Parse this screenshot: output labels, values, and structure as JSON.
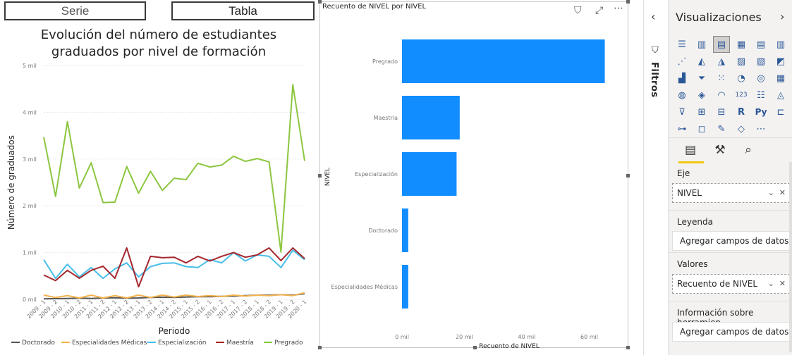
{
  "buttons": {
    "serie": "Serie",
    "tabla": "Tabla"
  },
  "line_chart": {
    "title_line1": "Evolución del número de estudiantes",
    "title_line2": "graduados por nivel de formación"
  },
  "bar_visual": {
    "title": "Recuento de NIVEL por NIVEL"
  },
  "filters_pane": {
    "label": "Filtros"
  },
  "viz_pane": {
    "title": "Visualizaciones",
    "wells": {
      "axis_label": "Eje",
      "axis_value": "NIVEL",
      "legend_label": "Leyenda",
      "legend_placeholder": "Agregar campos de datos a...",
      "values_label": "Valores",
      "values_value": "Recuento de NIVEL",
      "tooltips_label": "Información sobre herramien...",
      "tooltips_placeholder": "Agregar campos de datos a..."
    },
    "viz_icons": [
      "stacked-bar",
      "stacked-column",
      "clustered-bar",
      "clustered-column",
      "100-bar",
      "100-column",
      "line",
      "area",
      "stacked-area",
      "line-column",
      "line-stacked-column",
      "ribbon",
      "waterfall",
      "funnel",
      "scatter",
      "pie",
      "donut",
      "treemap",
      "map",
      "filled-map",
      "gauge",
      "card",
      "multi-row-card",
      "kpi",
      "slicer",
      "table",
      "matrix",
      "r-visual",
      "python-visual",
      "key-influencers",
      "decomposition-tree",
      "qa",
      "smart-narrative",
      "shape-map",
      "more"
    ]
  },
  "chart_data": [
    {
      "type": "line",
      "title": "Evolución del número de estudiantes graduados por nivel de formación",
      "xlabel": "Periodo",
      "ylabel": "Número de graduados",
      "ylim": [
        0,
        5000
      ],
      "yticks": [
        "0 mil",
        "1 mil",
        "2 mil",
        "3 mil",
        "4 mil",
        "5 mil"
      ],
      "xticks": [
        "2009 - 1",
        "2009 - 2",
        "2010 - 1",
        "2010 - 2",
        "2011 - 1",
        "2011 - 2",
        "2012 - 1",
        "2012 - 2",
        "2013 - 1",
        "2013 - 2",
        "2014 - 1",
        "2014 - 2",
        "2015 - 1",
        "2015 - 2",
        "2016 - 1",
        "2016 - 2",
        "2017 - 1",
        "2017 - 2",
        "2018 - 1",
        "2018 - 2",
        "2019 - 1",
        "2019 - 2",
        "2020 - 1"
      ],
      "x": [
        "2009 - 1",
        "2009 - 2",
        "2010 - 1",
        "2010 - 2",
        "2011 - 1",
        "2011 - 2",
        "2012 - 1",
        "2012 - 2",
        "2013 - 1",
        "2013 - 2",
        "2014 - 1",
        "2014 - 2",
        "2015 - 1",
        "2015 - 2",
        "2016 - 1",
        "2016 - 2",
        "2017 - 1",
        "2017 - 2",
        "2018 - 1",
        "2018 - 2",
        "2019 - 1",
        "2019 - 2",
        "2020 - 1"
      ],
      "legend_position": "bottom",
      "grid": true,
      "series": [
        {
          "name": "Doctorado",
          "color": "#555555",
          "values": [
            10,
            15,
            20,
            25,
            20,
            30,
            35,
            25,
            30,
            40,
            45,
            40,
            50,
            55,
            55,
            65,
            70,
            80,
            90,
            90,
            100,
            90,
            120
          ]
        },
        {
          "name": "Especialidades Médicas",
          "color": "#f2b24c",
          "values": [
            90,
            40,
            80,
            30,
            90,
            30,
            80,
            30,
            90,
            40,
            90,
            50,
            90,
            60,
            80,
            60,
            90,
            70,
            90,
            80,
            100,
            80,
            140
          ]
        },
        {
          "name": "Especialización",
          "color": "#48bee8",
          "values": [
            850,
            450,
            750,
            480,
            680,
            450,
            650,
            780,
            480,
            700,
            770,
            780,
            700,
            680,
            850,
            780,
            1000,
            820,
            950,
            920,
            680,
            1050,
            850
          ]
        },
        {
          "name": "Maestría",
          "color": "#a4262c",
          "values": [
            520,
            400,
            620,
            450,
            620,
            710,
            450,
            1100,
            270,
            920,
            890,
            900,
            780,
            920,
            820,
            920,
            1000,
            900,
            950,
            1100,
            830,
            1100,
            870
          ]
        },
        {
          "name": "Pregrado",
          "color": "#8cc63f",
          "values": [
            3470,
            2200,
            3800,
            2380,
            2920,
            2070,
            2080,
            2840,
            2270,
            2740,
            2330,
            2590,
            2560,
            2910,
            2830,
            2870,
            3060,
            2950,
            3010,
            2940,
            1010,
            4590,
            2960
          ]
        }
      ]
    },
    {
      "type": "bar",
      "orientation": "horizontal",
      "title": "Recuento de NIVEL por NIVEL",
      "xlabel": "Recuento de NIVEL",
      "ylabel": "NIVEL",
      "categories": [
        "Pregrado",
        "Maestria",
        "Especialización",
        "Doctorado",
        "Especialidades Médicas"
      ],
      "values": [
        65000,
        18500,
        17500,
        2000,
        2000
      ],
      "xlim": [
        0,
        66000
      ],
      "xticks": [
        "0 mil",
        "20 mil",
        "40 mil",
        "60 mil"
      ],
      "color": "#118dff"
    }
  ]
}
